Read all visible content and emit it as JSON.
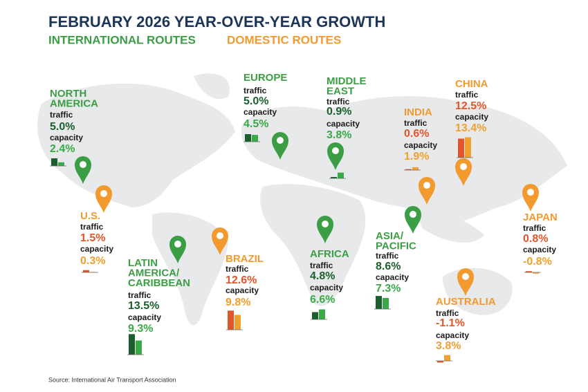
{
  "title": "FEBRUARY 2026 YEAR-OVER-YEAR GROWTH",
  "legend": {
    "international": "INTERNATIONAL ROUTES",
    "domestic": "DOMESTIC ROUTES"
  },
  "metric_labels": {
    "traffic": "traffic",
    "capacity": "capacity"
  },
  "colors": {
    "international": {
      "name": "#3b9e44",
      "traffic": "#1c5e2c",
      "capacity": "#3aaa48"
    },
    "domestic": {
      "name": "#f29a2e",
      "traffic": "#e0562a",
      "capacity": "#f0a030"
    }
  },
  "regions": [
    {
      "name": [
        "NORTH",
        "AMERICA"
      ],
      "route": "international",
      "traffic": {
        "value": 5.0,
        "label": "5.0%"
      },
      "capacity": {
        "value": 2.4,
        "label": "2.4%"
      }
    },
    {
      "name": [
        "EUROPE"
      ],
      "route": "international",
      "traffic": {
        "value": 5.0,
        "label": "5.0%"
      },
      "capacity": {
        "value": 4.5,
        "label": "4.5%"
      }
    },
    {
      "name": [
        "MIDDLE",
        "EAST"
      ],
      "route": "international",
      "traffic": {
        "value": 0.9,
        "label": "0.9%"
      },
      "capacity": {
        "value": 3.8,
        "label": "3.8%"
      }
    },
    {
      "name": [
        "INDIA"
      ],
      "route": "domestic",
      "traffic": {
        "value": 0.6,
        "label": "0.6%"
      },
      "capacity": {
        "value": 1.9,
        "label": "1.9%"
      }
    },
    {
      "name": [
        "CHINA"
      ],
      "route": "domestic",
      "traffic": {
        "value": 12.5,
        "label": "12.5%"
      },
      "capacity": {
        "value": 13.4,
        "label": "13.4%"
      }
    },
    {
      "name": [
        "U.S."
      ],
      "route": "domestic",
      "traffic": {
        "value": 1.5,
        "label": "1.5%"
      },
      "capacity": {
        "value": 0.3,
        "label": "0.3%"
      }
    },
    {
      "name": [
        "LATIN",
        "AMERICA/",
        "CARIBBEAN"
      ],
      "route": "international",
      "traffic": {
        "value": 13.5,
        "label": "13.5%"
      },
      "capacity": {
        "value": 9.3,
        "label": "9.3%"
      }
    },
    {
      "name": [
        "BRAZIL"
      ],
      "route": "domestic",
      "traffic": {
        "value": 12.6,
        "label": "12.6%"
      },
      "capacity": {
        "value": 9.8,
        "label": "9.8%"
      }
    },
    {
      "name": [
        "AFRICA"
      ],
      "route": "international",
      "traffic": {
        "value": 4.8,
        "label": "4.8%"
      },
      "capacity": {
        "value": 6.6,
        "label": "6.6%"
      }
    },
    {
      "name": [
        "ASIA/",
        "PACIFIC"
      ],
      "route": "international",
      "traffic": {
        "value": 8.6,
        "label": "8.6%"
      },
      "capacity": {
        "value": 7.3,
        "label": "7.3%"
      }
    },
    {
      "name": [
        "JAPAN"
      ],
      "route": "domestic",
      "traffic": {
        "value": 0.8,
        "label": "0.8%"
      },
      "capacity": {
        "value": -0.8,
        "label": "-0.8%"
      }
    },
    {
      "name": [
        "AUSTRALIA"
      ],
      "route": "domestic",
      "traffic": {
        "value": -1.1,
        "label": "-1.1%"
      },
      "capacity": {
        "value": 3.8,
        "label": "3.8%"
      }
    }
  ],
  "source": "Source: International Air Transport Association"
}
